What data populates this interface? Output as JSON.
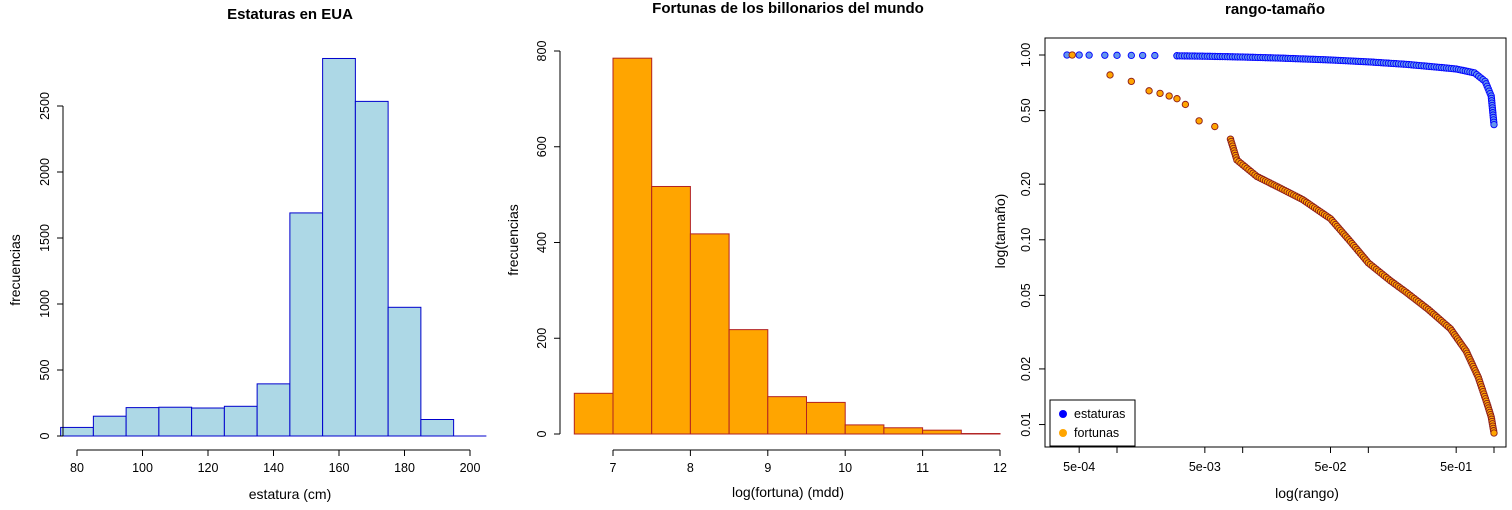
{
  "chart_data": [
    {
      "type": "bar",
      "subtype": "histogram",
      "title": "Estaturas en EUA",
      "xlabel": "estatura (cm)",
      "ylabel": "frecuencias",
      "xlim": [
        80,
        210
      ],
      "ylim": [
        0,
        2900
      ],
      "xticks": [
        80,
        100,
        120,
        140,
        160,
        180,
        200
      ],
      "yticks": [
        0,
        500,
        1000,
        1500,
        2000,
        2500
      ],
      "bins": [
        [
          75,
          85
        ],
        [
          85,
          95
        ],
        [
          95,
          105
        ],
        [
          105,
          115
        ],
        [
          115,
          125
        ],
        [
          125,
          135
        ],
        [
          135,
          145
        ],
        [
          145,
          155
        ],
        [
          155,
          165
        ],
        [
          165,
          175
        ],
        [
          175,
          185
        ],
        [
          185,
          195
        ],
        [
          195,
          205
        ]
      ],
      "values": [
        65,
        150,
        215,
        218,
        212,
        225,
        395,
        1690,
        2860,
        2535,
        975,
        125,
        0
      ],
      "fill": "#add8e6",
      "stroke": "#0000cd"
    },
    {
      "type": "bar",
      "subtype": "histogram",
      "title": "Fortunas de los billonarios del mundo",
      "xlabel": "log(fortuna) (mdd)",
      "ylabel": "frecuencias",
      "xlim": [
        6.5,
        12
      ],
      "ylim": [
        0,
        800
      ],
      "xticks": [
        7,
        8,
        9,
        10,
        11,
        12
      ],
      "yticks": [
        0,
        200,
        400,
        600,
        800
      ],
      "bins": [
        [
          6.5,
          7
        ],
        [
          7,
          7.5
        ],
        [
          7.5,
          8
        ],
        [
          8,
          8.5
        ],
        [
          8.5,
          9
        ],
        [
          9,
          9.5
        ],
        [
          9.5,
          10
        ],
        [
          10,
          10.5
        ],
        [
          10.5,
          11
        ],
        [
          11,
          11.5
        ],
        [
          11.5,
          12
        ]
      ],
      "values": [
        85,
        785,
        517,
        418,
        218,
        78,
        66,
        19,
        13,
        8,
        1
      ],
      "fill": "#ffa500",
      "stroke": "#b22222"
    },
    {
      "type": "scatter",
      "title": "rango-tamaño",
      "xlabel": "log(rango)",
      "ylabel": "log(tamaño)",
      "log_x": true,
      "log_y": true,
      "xticks": [
        "5e-04",
        "5e-03",
        "5e-02",
        "5e-01"
      ],
      "yticks": [
        "0.01",
        "0.02",
        "0.05",
        "0.10",
        "0.20",
        "0.50",
        "1.00"
      ],
      "legend": {
        "position": "bottom-left"
      },
      "series": [
        {
          "name": "estaturas",
          "color": "#0000ff",
          "points": [
            [
              0.0004,
              1.0
            ],
            [
              0.0005,
              1.0
            ],
            [
              0.0006,
              0.998
            ],
            [
              0.0008,
              0.997
            ],
            [
              0.001,
              0.996
            ],
            [
              0.0013,
              0.995
            ],
            [
              0.0016,
              0.994
            ],
            [
              0.002,
              0.993
            ],
            [
              0.003,
              0.99
            ],
            [
              0.005,
              0.985
            ],
            [
              0.01,
              0.975
            ],
            [
              0.02,
              0.962
            ],
            [
              0.05,
              0.94
            ],
            [
              0.1,
              0.918
            ],
            [
              0.2,
              0.89
            ],
            [
              0.35,
              0.86
            ],
            [
              0.5,
              0.84
            ],
            [
              0.7,
              0.8
            ],
            [
              0.85,
              0.72
            ],
            [
              0.95,
              0.6
            ],
            [
              1.0,
              0.42
            ]
          ]
        },
        {
          "name": "fortunas",
          "color": "#ffa500",
          "points": [
            [
              0.00044,
              1.0
            ],
            [
              0.00088,
              0.78
            ],
            [
              0.0013,
              0.72
            ],
            [
              0.0018,
              0.64
            ],
            [
              0.0022,
              0.62
            ],
            [
              0.0026,
              0.6
            ],
            [
              0.003,
              0.58
            ],
            [
              0.0035,
              0.54
            ],
            [
              0.0045,
              0.44
            ],
            [
              0.006,
              0.41
            ],
            [
              0.008,
              0.35
            ],
            [
              0.009,
              0.27
            ],
            [
              0.013,
              0.22
            ],
            [
              0.02,
              0.19
            ],
            [
              0.03,
              0.165
            ],
            [
              0.05,
              0.13
            ],
            [
              0.07,
              0.1
            ],
            [
              0.1,
              0.075
            ],
            [
              0.15,
              0.06
            ],
            [
              0.2,
              0.052
            ],
            [
              0.3,
              0.042
            ],
            [
              0.45,
              0.033
            ],
            [
              0.6,
              0.025
            ],
            [
              0.75,
              0.018
            ],
            [
              0.88,
              0.013
            ],
            [
              0.95,
              0.011
            ],
            [
              1.0,
              0.009
            ]
          ]
        }
      ]
    }
  ]
}
